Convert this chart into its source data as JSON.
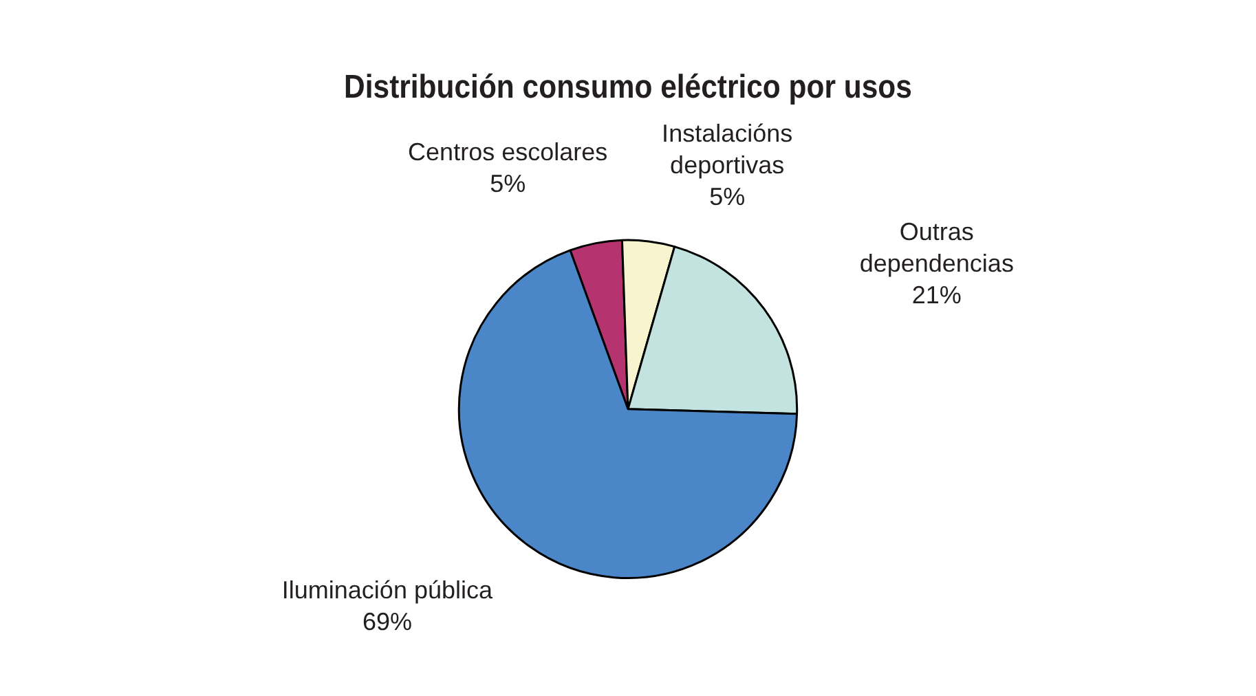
{
  "chart_data": {
    "type": "pie",
    "title": "Distribución consumo eléctrico por usos",
    "categories": [
      "Centros escolares",
      "Instalacións deportivas",
      "Outras dependencias",
      "Iluminación pública"
    ],
    "values": [
      5,
      5,
      21,
      69
    ],
    "colors": [
      "#b5336e",
      "#f8f4d0",
      "#c2e3df",
      "#4a86c8"
    ],
    "value_labels": [
      "5%",
      "5%",
      "21%",
      "69%"
    ],
    "legend": false
  }
}
